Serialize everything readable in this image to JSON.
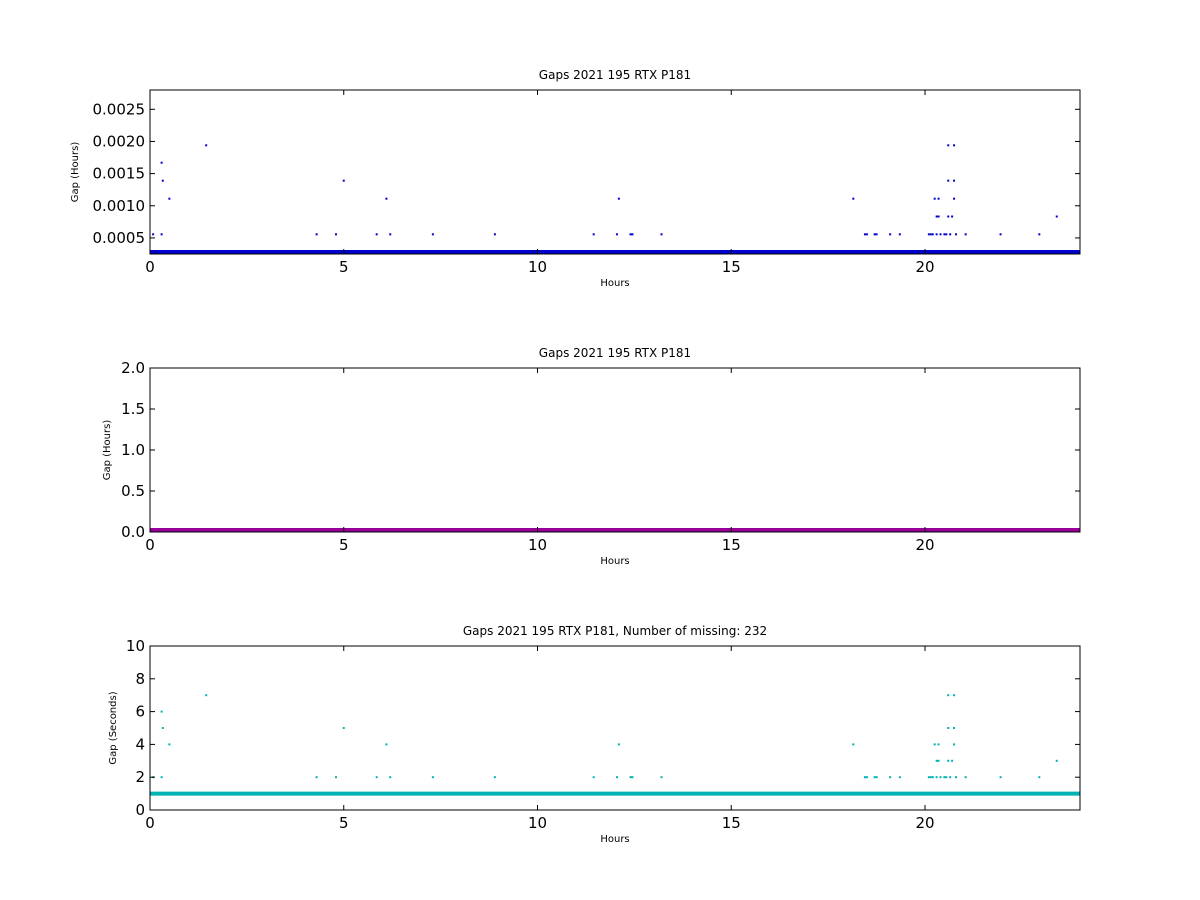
{
  "chart_data": [
    {
      "type": "scatter",
      "title": "Gaps 2021 195 RTX  P181",
      "xlabel": "Hours",
      "ylabel": "Gap (Hours)",
      "xlim": [
        0,
        24
      ],
      "ylim": [
        0.00025,
        0.0028
      ],
      "xticks": [
        0,
        5,
        10,
        15,
        20
      ],
      "yticks": [
        0.0005,
        0.001,
        0.0015,
        0.002,
        0.0025
      ],
      "ytick_labels": [
        "0.0005",
        "0.0010",
        "0.0015",
        "0.0020",
        "0.0025"
      ],
      "grid": false,
      "color": "#0000cc",
      "baseline": {
        "y": 0.000278,
        "x_range": [
          0,
          24
        ]
      },
      "points": {
        "x": [
          0.08,
          0.3,
          0.3,
          0.33,
          0.5,
          1.45,
          4.3,
          4.8,
          5.0,
          5.85,
          6.1,
          6.2,
          7.3,
          8.9,
          11.45,
          12.05,
          12.1,
          12.4,
          12.45,
          13.2,
          18.15,
          18.45,
          18.5,
          18.7,
          18.75,
          19.1,
          19.35,
          20.1,
          20.15,
          20.2,
          20.25,
          20.3,
          20.3,
          20.35,
          20.35,
          20.4,
          20.5,
          20.55,
          20.6,
          20.6,
          20.6,
          20.65,
          20.7,
          20.75,
          20.75,
          20.75,
          20.8,
          21.05,
          21.95,
          22.95,
          23.4
        ],
        "y": [
          0.000556,
          0.000556,
          0.00167,
          0.00139,
          0.00111,
          0.00194,
          0.000556,
          0.000556,
          0.00139,
          0.000556,
          0.00111,
          0.000556,
          0.000556,
          0.000556,
          0.000556,
          0.000556,
          0.00111,
          0.000556,
          0.000556,
          0.000556,
          0.00111,
          0.000556,
          0.000556,
          0.000556,
          0.000556,
          0.000556,
          0.000556,
          0.000556,
          0.000556,
          0.000556,
          0.00111,
          0.000833,
          0.000556,
          0.00111,
          0.000833,
          0.000556,
          0.000556,
          0.000556,
          0.00194,
          0.00139,
          0.000833,
          0.000556,
          0.000833,
          0.00194,
          0.00139,
          0.00111,
          0.000556,
          0.000556,
          0.000556,
          0.000556,
          0.000833
        ]
      }
    },
    {
      "type": "scatter",
      "title": "Gaps 2021 195 RTX  P181",
      "xlabel": "Hours",
      "ylabel": "Gap (Hours)",
      "xlim": [
        0,
        24
      ],
      "ylim": [
        0,
        2.0
      ],
      "xticks": [
        0,
        5,
        10,
        15,
        20
      ],
      "yticks": [
        0.0,
        0.5,
        1.0,
        1.5,
        2.0
      ],
      "ytick_labels": [
        "0.0",
        "0.5",
        "1.0",
        "1.5",
        "2.0"
      ],
      "grid": false,
      "color": "#990099",
      "baseline": {
        "y": 0.0,
        "x_range": [
          0,
          24
        ]
      },
      "points": {
        "x": [],
        "y": []
      }
    },
    {
      "type": "scatter",
      "title": "Gaps 2021 195 RTX  P181, Number of missing: 232",
      "xlabel": "Hours",
      "ylabel": "Gap (Seconds)",
      "xlim": [
        0,
        24
      ],
      "ylim": [
        0,
        10
      ],
      "xticks": [
        0,
        5,
        10,
        15,
        20
      ],
      "yticks": [
        0,
        2,
        4,
        6,
        8,
        10
      ],
      "ytick_labels": [
        "0",
        "2",
        "4",
        "6",
        "8",
        "10"
      ],
      "grid": false,
      "color": "#00b2b2",
      "baseline": {
        "y": 1,
        "x_range": [
          0,
          24
        ]
      },
      "points": {
        "x": [
          0.08,
          0.3,
          0.3,
          0.33,
          0.5,
          1.45,
          4.3,
          4.8,
          5.0,
          5.85,
          6.1,
          6.2,
          7.3,
          8.9,
          11.45,
          12.05,
          12.1,
          12.4,
          12.45,
          13.2,
          18.15,
          18.45,
          18.5,
          18.7,
          18.75,
          19.1,
          19.35,
          20.1,
          20.15,
          20.2,
          20.25,
          20.3,
          20.3,
          20.35,
          20.35,
          20.4,
          20.5,
          20.55,
          20.6,
          20.6,
          20.6,
          20.65,
          20.7,
          20.75,
          20.75,
          20.75,
          20.8,
          21.05,
          21.95,
          22.95,
          23.4
        ],
        "y": [
          2,
          2,
          6,
          5,
          4,
          7,
          2,
          2,
          5,
          2,
          4,
          2,
          2,
          2,
          2,
          2,
          4,
          2,
          2,
          2,
          4,
          2,
          2,
          2,
          2,
          2,
          2,
          2,
          2,
          2,
          4,
          3,
          2,
          4,
          3,
          2,
          2,
          2,
          7,
          5,
          3,
          2,
          3,
          7,
          5,
          4,
          2,
          2,
          2,
          2,
          3
        ]
      }
    }
  ]
}
